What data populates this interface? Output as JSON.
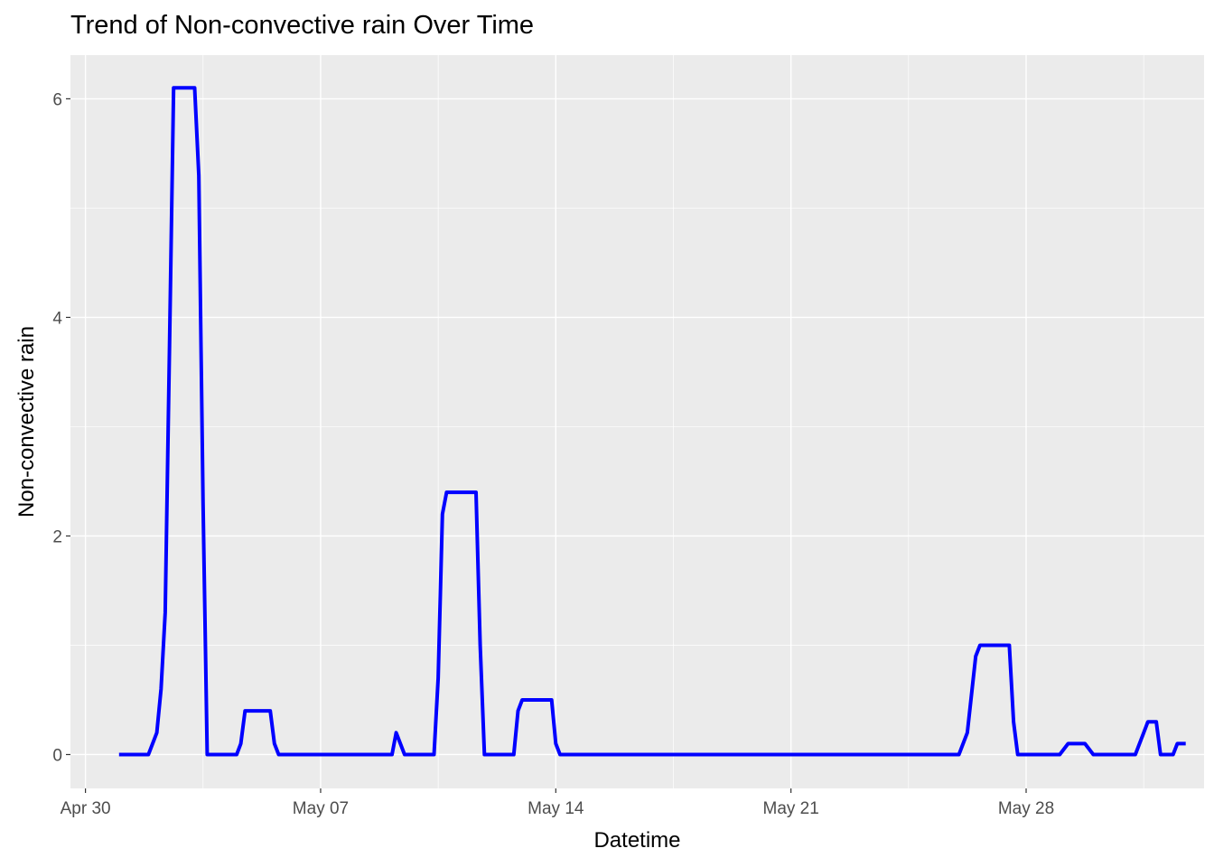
{
  "chart_data": {
    "type": "line",
    "title": "Trend of Non-convective rain Over Time",
    "xlabel": "Datetime",
    "ylabel": "Non-convective rain",
    "x_tick_labels": [
      "Apr 30",
      "May 07",
      "May 14",
      "May 21",
      "May 28"
    ],
    "x_tick_dates": [
      "2024-04-30",
      "2024-05-07",
      "2024-05-14",
      "2024-05-21",
      "2024-05-28"
    ],
    "y_ticks": [
      0,
      2,
      4,
      6
    ],
    "xlim": [
      "2024-04-29T13:17",
      "2024-06-02T07:07"
    ],
    "ylim": [
      -0.31,
      6.4
    ],
    "grid": true,
    "legend": "none",
    "colors": {
      "panel": "#ebebeb",
      "grid_major": "#ffffff",
      "series": "#0000ff",
      "tick": "#4d4d4d"
    },
    "series": [
      {
        "color": "#0000ff",
        "points": [
          [
            "2024-05-01T00:00",
            0
          ],
          [
            "2024-05-01T21:00",
            0
          ],
          [
            "2024-05-02T03:00",
            0.2
          ],
          [
            "2024-05-02T06:00",
            0.6
          ],
          [
            "2024-05-02T09:00",
            1.3
          ],
          [
            "2024-05-02T12:00",
            3.7
          ],
          [
            "2024-05-02T15:00",
            6.1
          ],
          [
            "2024-05-03T06:00",
            6.1
          ],
          [
            "2024-05-03T09:00",
            5.3
          ],
          [
            "2024-05-03T12:00",
            2.3
          ],
          [
            "2024-05-03T15:00",
            0
          ],
          [
            "2024-05-04T12:00",
            0
          ],
          [
            "2024-05-04T15:00",
            0.1
          ],
          [
            "2024-05-04T18:00",
            0.4
          ],
          [
            "2024-05-05T12:00",
            0.4
          ],
          [
            "2024-05-05T15:00",
            0.1
          ],
          [
            "2024-05-05T18:00",
            0
          ],
          [
            "2024-05-09T03:00",
            0
          ],
          [
            "2024-05-09T06:00",
            0.2
          ],
          [
            "2024-05-09T12:00",
            0
          ],
          [
            "2024-05-10T09:00",
            0
          ],
          [
            "2024-05-10T12:00",
            0.7
          ],
          [
            "2024-05-10T15:00",
            2.2
          ],
          [
            "2024-05-10T18:00",
            2.4
          ],
          [
            "2024-05-11T15:00",
            2.4
          ],
          [
            "2024-05-11T18:00",
            1.0
          ],
          [
            "2024-05-11T21:00",
            0
          ],
          [
            "2024-05-12T18:00",
            0
          ],
          [
            "2024-05-12T21:00",
            0.4
          ],
          [
            "2024-05-13T00:00",
            0.5
          ],
          [
            "2024-05-13T21:00",
            0.5
          ],
          [
            "2024-05-14T00:00",
            0.1
          ],
          [
            "2024-05-14T03:00",
            0
          ],
          [
            "2024-05-26T00:00",
            0
          ],
          [
            "2024-05-26T06:00",
            0.2
          ],
          [
            "2024-05-26T12:00",
            0.9
          ],
          [
            "2024-05-26T15:00",
            1.0
          ],
          [
            "2024-05-27T12:00",
            1.0
          ],
          [
            "2024-05-27T15:00",
            0.3
          ],
          [
            "2024-05-27T18:00",
            0
          ],
          [
            "2024-05-29T00:00",
            0
          ],
          [
            "2024-05-29T06:00",
            0.1
          ],
          [
            "2024-05-29T18:00",
            0.1
          ],
          [
            "2024-05-30T00:00",
            0
          ],
          [
            "2024-05-31T06:00",
            0
          ],
          [
            "2024-05-31T12:00",
            0.2
          ],
          [
            "2024-05-31T15:00",
            0.3
          ],
          [
            "2024-05-31T21:00",
            0.3
          ],
          [
            "2024-06-01T00:00",
            0
          ],
          [
            "2024-06-01T09:00",
            0
          ],
          [
            "2024-06-01T12:00",
            0.1
          ],
          [
            "2024-06-01T18:00",
            0.1
          ]
        ]
      }
    ]
  }
}
